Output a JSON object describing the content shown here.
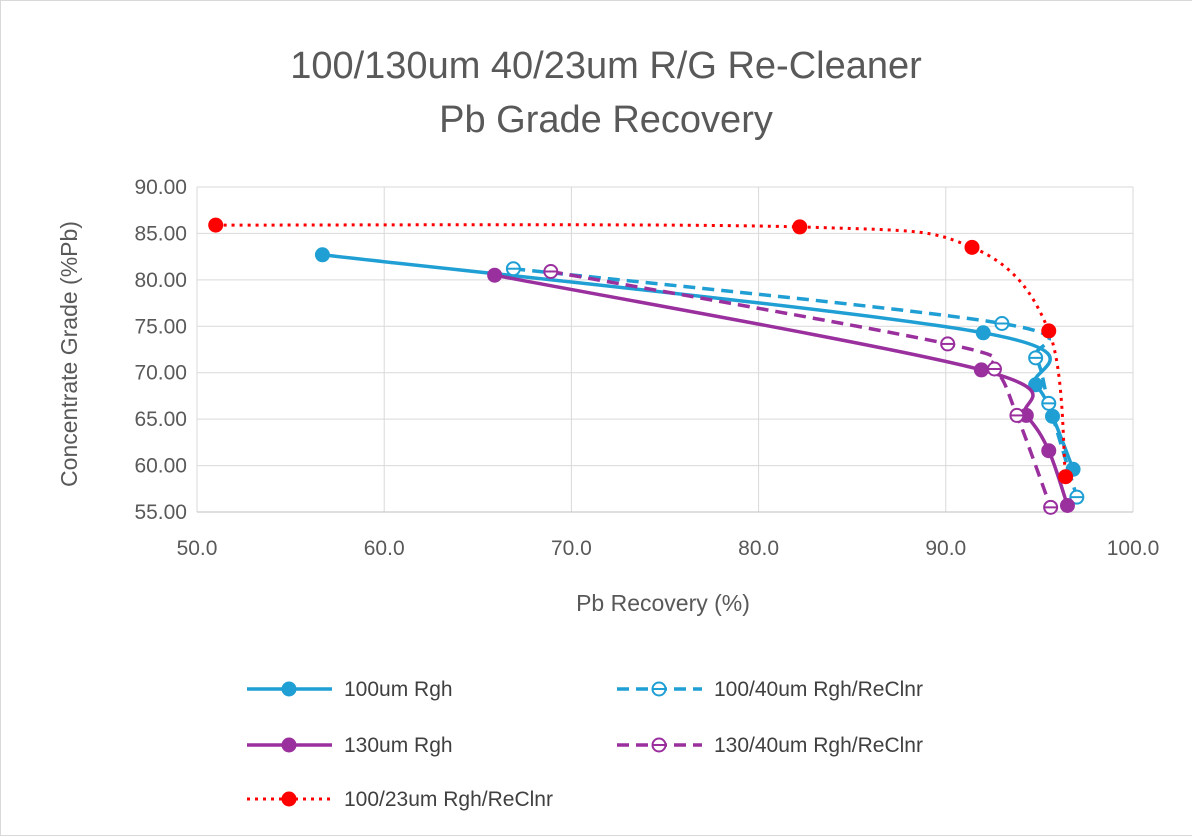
{
  "chart_data": {
    "type": "scatter",
    "title_lines": [
      "100/130um 40/23um R/G Re-Cleaner",
      "Pb Grade Recovery"
    ],
    "xlabel": "Pb Recovery (%)",
    "ylabel": "Concentrate Grade (%Pb)",
    "xlim": [
      50,
      100
    ],
    "ylim": [
      55,
      90
    ],
    "x_ticks": [
      "50.0",
      "60.0",
      "70.0",
      "80.0",
      "90.0",
      "100.0"
    ],
    "y_ticks": [
      "55.00",
      "60.00",
      "65.00",
      "70.00",
      "75.00",
      "80.00",
      "85.00",
      "90.00"
    ],
    "grid": true,
    "legend_position": "bottom",
    "series": [
      {
        "name": "100um Rgh",
        "color": "#1f9fd4",
        "dash": "solid",
        "marker": "filled",
        "x": [
          56.7,
          92.0,
          94.8,
          95.7,
          96.8
        ],
        "y": [
          82.7,
          74.3,
          68.7,
          65.3,
          59.6
        ]
      },
      {
        "name": "100/40um Rgh/ReClnr",
        "color": "#1f9fd4",
        "dash": "dashed",
        "marker": "open",
        "x": [
          66.9,
          93.0,
          94.8,
          95.5,
          97.0
        ],
        "y": [
          81.2,
          75.3,
          71.6,
          66.7,
          56.6
        ]
      },
      {
        "name": "130um Rgh",
        "color": "#9a2f9e",
        "dash": "solid",
        "marker": "filled",
        "x": [
          65.9,
          91.9,
          94.3,
          95.5,
          96.5
        ],
        "y": [
          80.5,
          70.3,
          65.4,
          61.6,
          55.7
        ]
      },
      {
        "name": "130/40um Rgh/ReClnr",
        "color": "#9a2f9e",
        "dash": "dashed",
        "marker": "open",
        "x": [
          68.9,
          90.1,
          92.6,
          93.8,
          95.6
        ],
        "y": [
          80.9,
          73.1,
          70.4,
          65.4,
          55.5
        ]
      },
      {
        "name": "100/23um Rgh/ReClnr",
        "color": "#ff0000",
        "dash": "dotted",
        "marker": "filled",
        "x": [
          51.0,
          82.2,
          91.4,
          95.5,
          96.4
        ],
        "y": [
          85.9,
          85.7,
          83.5,
          74.5,
          58.8
        ]
      }
    ]
  }
}
